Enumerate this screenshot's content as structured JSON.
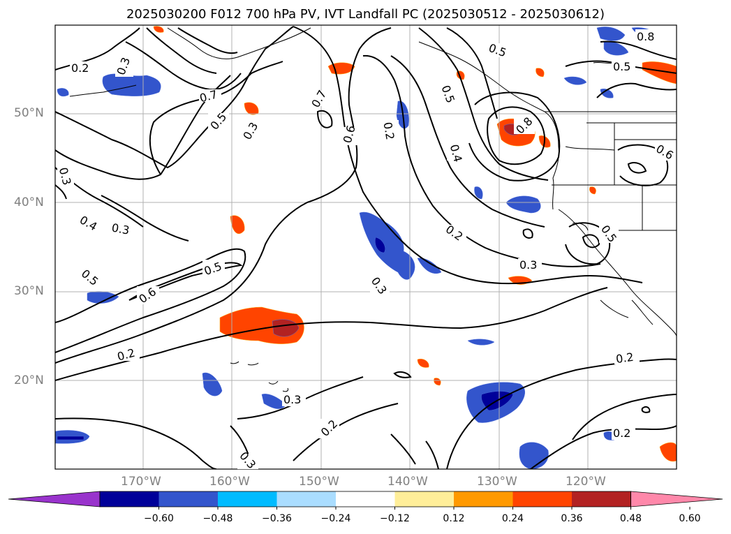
{
  "title": "2025030200 F012 700 hPa PV, IVT Landfall PC (2025030512 - 2025030612)",
  "lat_labels": [
    "50°N",
    "40°N",
    "30°N",
    "20°N"
  ],
  "lon_labels": [
    "170°W",
    "160°W",
    "150°W",
    "140°W",
    "130°W",
    "120°W"
  ],
  "colorbar": {
    "ticks": [
      "−0.60",
      "−0.48",
      "−0.36",
      "−0.24",
      "−0.12",
      "0.12",
      "0.24",
      "0.36",
      "0.48",
      "0.60"
    ],
    "colors": [
      "#9933cc",
      "#000099",
      "#3355cc",
      "#00bbff",
      "#aaddff",
      "#ffffff",
      "#ffee99",
      "#ff9900",
      "#ff4400",
      "#b22222",
      "#ff88aa"
    ]
  },
  "contour_labels": [
    "0.2",
    "0.3",
    "0.7",
    "0.5",
    "0.6",
    "0.4",
    "0.8"
  ]
}
